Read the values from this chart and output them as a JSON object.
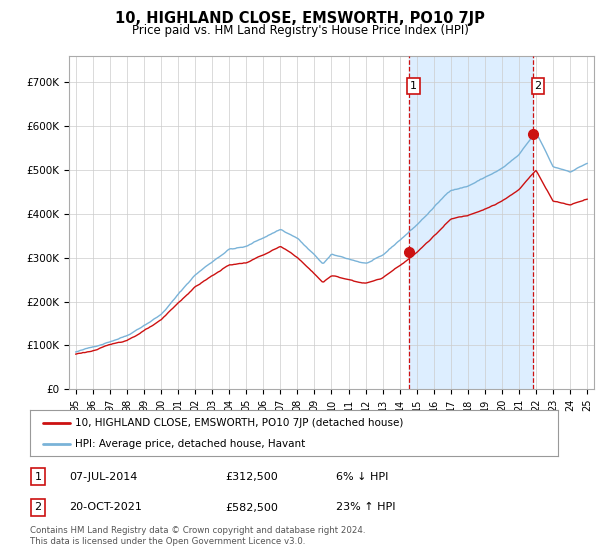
{
  "title": "10, HIGHLAND CLOSE, EMSWORTH, PO10 7JP",
  "subtitle": "Price paid vs. HM Land Registry's House Price Index (HPI)",
  "ylim": [
    0,
    760000
  ],
  "yticks": [
    0,
    100000,
    200000,
    300000,
    400000,
    500000,
    600000,
    700000
  ],
  "ytick_labels": [
    "£0",
    "£100K",
    "£200K",
    "£300K",
    "£400K",
    "£500K",
    "£600K",
    "£700K"
  ],
  "hpi_color": "#7ab3d8",
  "price_color": "#cc1111",
  "vline_color": "#cc1111",
  "shade_color": "#ddeeff",
  "background_color": "#ffffff",
  "grid_color": "#cccccc",
  "legend_label_price": "10, HIGHLAND CLOSE, EMSWORTH, PO10 7JP (detached house)",
  "legend_label_hpi": "HPI: Average price, detached house, Havant",
  "transaction1_date": "07-JUL-2014",
  "transaction1_price": "£312,500",
  "transaction1_pct": "6% ↓ HPI",
  "transaction1_year": 2014.52,
  "transaction1_value": 312500,
  "transaction2_date": "20-OCT-2021",
  "transaction2_price": "£582,500",
  "transaction2_pct": "23% ↑ HPI",
  "transaction2_year": 2021.8,
  "transaction2_value": 582500,
  "footnote": "Contains HM Land Registry data © Crown copyright and database right 2024.\nThis data is licensed under the Open Government Licence v3.0.",
  "xlim_left": 1994.6,
  "xlim_right": 2025.4
}
